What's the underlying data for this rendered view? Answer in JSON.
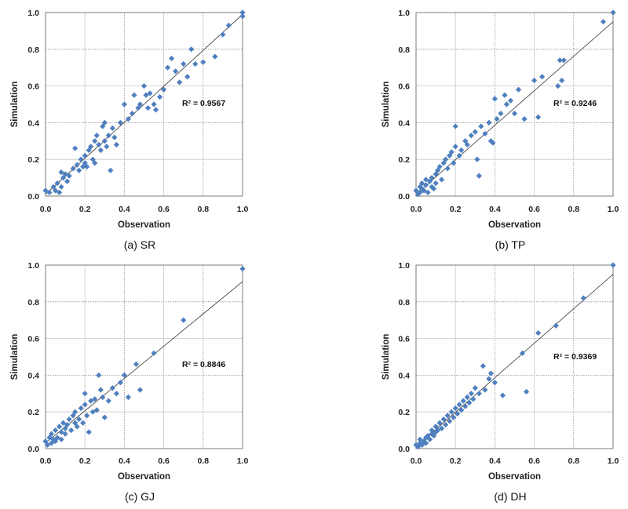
{
  "chart_data": [
    {
      "type": "scatter",
      "caption": "(a) SR",
      "xlabel": "Observation",
      "ylabel": "Simulation",
      "xlim": [
        0,
        1
      ],
      "ylim": [
        0,
        1
      ],
      "xticks": [
        "0.0",
        "0.2",
        "0.4",
        "0.6",
        "0.8",
        "1.0"
      ],
      "yticks": [
        "0.0",
        "0.2",
        "0.4",
        "0.6",
        "0.8",
        "1.0"
      ],
      "annotation": "R² = 0.9567",
      "trendline": {
        "x": [
          0,
          1
        ],
        "y": [
          0.01,
          0.99
        ]
      },
      "grid": true,
      "marker_color": "#4F7FBE",
      "x": [
        0.0,
        0.02,
        0.04,
        0.05,
        0.06,
        0.07,
        0.08,
        0.08,
        0.09,
        0.1,
        0.11,
        0.12,
        0.14,
        0.15,
        0.16,
        0.17,
        0.18,
        0.19,
        0.2,
        0.2,
        0.21,
        0.22,
        0.23,
        0.24,
        0.25,
        0.25,
        0.26,
        0.27,
        0.28,
        0.29,
        0.3,
        0.3,
        0.31,
        0.32,
        0.33,
        0.34,
        0.35,
        0.36,
        0.38,
        0.4,
        0.42,
        0.44,
        0.45,
        0.47,
        0.48,
        0.5,
        0.51,
        0.52,
        0.53,
        0.55,
        0.56,
        0.58,
        0.6,
        0.62,
        0.64,
        0.66,
        0.68,
        0.7,
        0.72,
        0.74,
        0.76,
        0.8,
        0.86,
        0.9,
        0.93,
        1.0,
        1.0
      ],
      "y": [
        0.03,
        0.02,
        0.05,
        0.03,
        0.07,
        0.02,
        0.05,
        0.13,
        0.1,
        0.12,
        0.08,
        0.11,
        0.15,
        0.26,
        0.17,
        0.14,
        0.2,
        0.16,
        0.22,
        0.18,
        0.16,
        0.25,
        0.27,
        0.2,
        0.3,
        0.18,
        0.33,
        0.28,
        0.25,
        0.38,
        0.3,
        0.4,
        0.27,
        0.33,
        0.14,
        0.37,
        0.32,
        0.28,
        0.4,
        0.5,
        0.42,
        0.45,
        0.55,
        0.48,
        0.5,
        0.6,
        0.55,
        0.48,
        0.56,
        0.5,
        0.47,
        0.54,
        0.58,
        0.7,
        0.75,
        0.68,
        0.62,
        0.72,
        0.65,
        0.8,
        0.72,
        0.73,
        0.76,
        0.88,
        0.93,
        0.98,
        1.0
      ]
    },
    {
      "type": "scatter",
      "caption": "(b) TP",
      "xlabel": "Observation",
      "ylabel": "Simulation",
      "xlim": [
        0,
        1
      ],
      "ylim": [
        0,
        1
      ],
      "xticks": [
        "0.0",
        "0.2",
        "0.4",
        "0.6",
        "0.8",
        "1.0"
      ],
      "yticks": [
        "0.0",
        "0.2",
        "0.4",
        "0.6",
        "0.8",
        "1.0"
      ],
      "annotation": "R² = 0.9246",
      "trendline": {
        "x": [
          0,
          1
        ],
        "y": [
          0.01,
          0.95
        ]
      },
      "grid": true,
      "marker_color": "#4F7FBE",
      "x": [
        0.0,
        0.01,
        0.02,
        0.02,
        0.03,
        0.03,
        0.04,
        0.05,
        0.05,
        0.06,
        0.07,
        0.08,
        0.08,
        0.09,
        0.1,
        0.1,
        0.11,
        0.12,
        0.13,
        0.14,
        0.15,
        0.16,
        0.17,
        0.18,
        0.19,
        0.2,
        0.2,
        0.22,
        0.23,
        0.25,
        0.26,
        0.28,
        0.3,
        0.31,
        0.32,
        0.33,
        0.35,
        0.37,
        0.38,
        0.39,
        0.4,
        0.41,
        0.43,
        0.45,
        0.46,
        0.48,
        0.5,
        0.52,
        0.55,
        0.6,
        0.62,
        0.64,
        0.72,
        0.73,
        0.74,
        0.75,
        0.95,
        1.0
      ],
      "y": [
        0.03,
        0.01,
        0.05,
        0.02,
        0.07,
        0.04,
        0.03,
        0.06,
        0.09,
        0.02,
        0.08,
        0.05,
        0.1,
        0.04,
        0.12,
        0.07,
        0.14,
        0.16,
        0.09,
        0.18,
        0.2,
        0.15,
        0.22,
        0.24,
        0.18,
        0.38,
        0.27,
        0.22,
        0.25,
        0.3,
        0.28,
        0.33,
        0.35,
        0.2,
        0.11,
        0.38,
        0.34,
        0.4,
        0.3,
        0.29,
        0.53,
        0.42,
        0.45,
        0.55,
        0.5,
        0.52,
        0.45,
        0.58,
        0.42,
        0.63,
        0.43,
        0.65,
        0.6,
        0.74,
        0.63,
        0.74,
        0.95,
        1.0
      ]
    },
    {
      "type": "scatter",
      "caption": "(c) GJ",
      "xlabel": "Observation",
      "ylabel": "Simulation",
      "xlim": [
        0,
        1
      ],
      "ylim": [
        0,
        1
      ],
      "xticks": [
        "0.0",
        "0.2",
        "0.4",
        "0.6",
        "0.8",
        "1.0"
      ],
      "yticks": [
        "0.0",
        "0.2",
        "0.4",
        "0.6",
        "0.8",
        "1.0"
      ],
      "annotation": "R² = 0.8846",
      "trendline": {
        "x": [
          0,
          1
        ],
        "y": [
          0.03,
          0.91
        ]
      },
      "grid": true,
      "marker_color": "#4F7FBE",
      "x": [
        0.0,
        0.01,
        0.02,
        0.03,
        0.03,
        0.04,
        0.05,
        0.05,
        0.06,
        0.07,
        0.08,
        0.08,
        0.09,
        0.1,
        0.1,
        0.11,
        0.12,
        0.13,
        0.14,
        0.15,
        0.15,
        0.16,
        0.17,
        0.18,
        0.19,
        0.2,
        0.2,
        0.21,
        0.22,
        0.23,
        0.24,
        0.25,
        0.26,
        0.27,
        0.28,
        0.29,
        0.3,
        0.32,
        0.34,
        0.36,
        0.38,
        0.4,
        0.42,
        0.46,
        0.48,
        0.55,
        0.7,
        1.0
      ],
      "y": [
        0.04,
        0.02,
        0.06,
        0.03,
        0.08,
        0.05,
        0.04,
        0.1,
        0.06,
        0.12,
        0.05,
        0.09,
        0.14,
        0.08,
        0.11,
        0.13,
        0.16,
        0.1,
        0.18,
        0.14,
        0.2,
        0.12,
        0.16,
        0.22,
        0.14,
        0.24,
        0.3,
        0.18,
        0.09,
        0.26,
        0.2,
        0.27,
        0.21,
        0.4,
        0.32,
        0.28,
        0.17,
        0.26,
        0.33,
        0.3,
        0.36,
        0.4,
        0.28,
        0.46,
        0.32,
        0.52,
        0.7,
        0.98
      ]
    },
    {
      "type": "scatter",
      "caption": "(d) DH",
      "xlabel": "Observation",
      "ylabel": "Simulation",
      "xlim": [
        0,
        1
      ],
      "ylim": [
        0,
        1
      ],
      "xticks": [
        "0.0",
        "0.2",
        "0.4",
        "0.6",
        "0.8",
        "1.0"
      ],
      "yticks": [
        "0.0",
        "0.2",
        "0.4",
        "0.6",
        "0.8",
        "1.0"
      ],
      "annotation": "R² = 0.9369",
      "trendline": {
        "x": [
          0,
          1
        ],
        "y": [
          0.01,
          0.95
        ]
      },
      "grid": true,
      "marker_color": "#4F7FBE",
      "x": [
        0.0,
        0.01,
        0.02,
        0.02,
        0.03,
        0.04,
        0.05,
        0.05,
        0.06,
        0.07,
        0.08,
        0.08,
        0.09,
        0.1,
        0.1,
        0.11,
        0.12,
        0.13,
        0.14,
        0.15,
        0.16,
        0.17,
        0.18,
        0.19,
        0.2,
        0.21,
        0.22,
        0.23,
        0.24,
        0.25,
        0.26,
        0.27,
        0.28,
        0.29,
        0.3,
        0.32,
        0.34,
        0.35,
        0.37,
        0.38,
        0.4,
        0.44,
        0.54,
        0.56,
        0.62,
        0.71,
        0.85,
        1.0
      ],
      "y": [
        0.02,
        0.01,
        0.03,
        0.05,
        0.02,
        0.04,
        0.06,
        0.03,
        0.07,
        0.05,
        0.08,
        0.1,
        0.07,
        0.09,
        0.12,
        0.1,
        0.14,
        0.11,
        0.16,
        0.13,
        0.18,
        0.15,
        0.2,
        0.17,
        0.22,
        0.19,
        0.24,
        0.21,
        0.26,
        0.23,
        0.28,
        0.25,
        0.3,
        0.27,
        0.33,
        0.3,
        0.45,
        0.32,
        0.38,
        0.41,
        0.36,
        0.29,
        0.52,
        0.31,
        0.63,
        0.67,
        0.82,
        1.0
      ]
    }
  ]
}
